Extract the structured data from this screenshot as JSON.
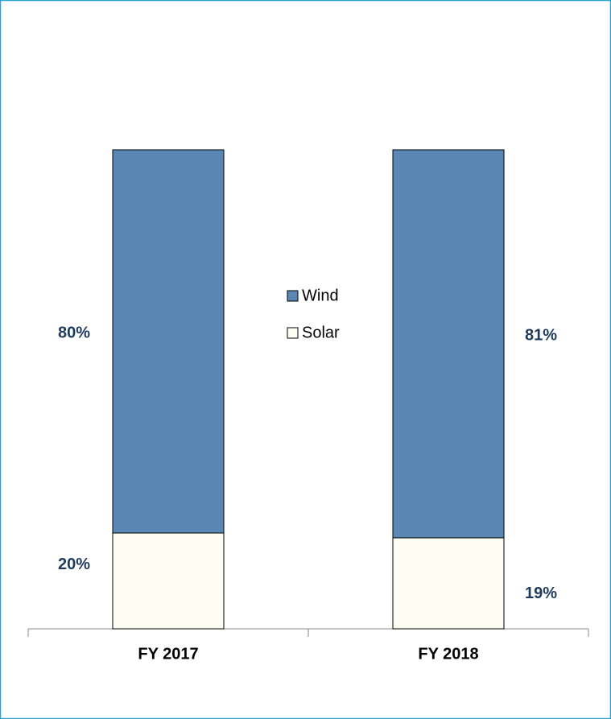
{
  "chart_data": {
    "type": "stacked_bar",
    "categories": [
      "FY 2017",
      "FY 2018"
    ],
    "series": [
      {
        "name": "Wind",
        "color": "#5b87b4",
        "values": [
          80,
          81
        ],
        "value_labels": [
          "80%",
          "81%"
        ]
      },
      {
        "name": "Solar",
        "color": "#fdfdf3",
        "values": [
          20,
          19
        ],
        "value_labels": [
          "20%",
          "19%"
        ]
      }
    ],
    "ylim": [
      0,
      100
    ]
  }
}
